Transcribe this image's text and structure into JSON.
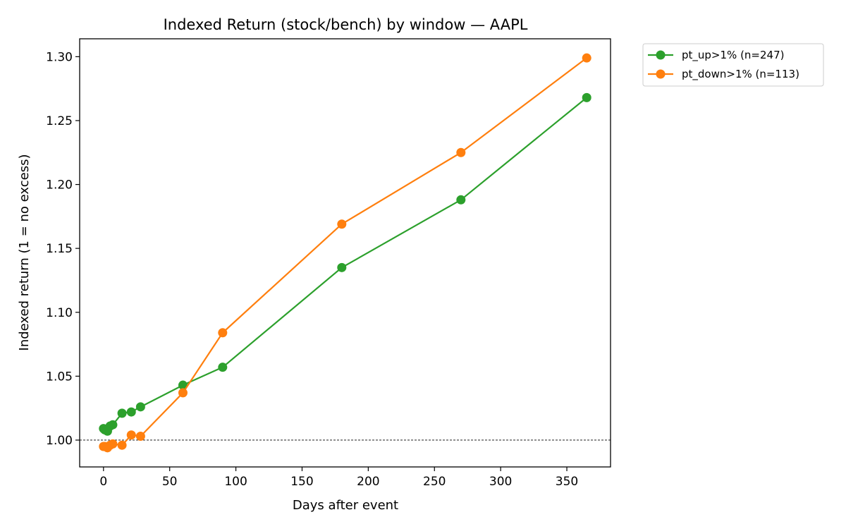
{
  "chart_data": {
    "type": "line",
    "title": "Indexed Return (stock/bench) by window — AAPL",
    "xlabel": "Days after event",
    "ylabel": "Indexed return (1 = no excess)",
    "xlim": [
      -18,
      383
    ],
    "ylim": [
      0.979,
      1.314
    ],
    "x_ticks": [
      0,
      50,
      100,
      150,
      200,
      250,
      300,
      350
    ],
    "x_tick_labels": [
      "0",
      "50",
      "100",
      "150",
      "200",
      "250",
      "300",
      "350"
    ],
    "y_ticks": [
      1.0,
      1.05,
      1.1,
      1.15,
      1.2,
      1.25,
      1.3
    ],
    "y_tick_labels": [
      "1.00",
      "1.05",
      "1.10",
      "1.15",
      "1.20",
      "1.25",
      "1.30"
    ],
    "grid": false,
    "legend_position": "outside-top-right",
    "reference_line": {
      "y": 1.0,
      "style": "dashed",
      "color": "#000000"
    },
    "series": [
      {
        "name": "pt_up>1% (n=247)",
        "color": "#2ca02c",
        "x": [
          0,
          1,
          3,
          5,
          7,
          14,
          21,
          28,
          60,
          90,
          180,
          270,
          365
        ],
        "y": [
          1.009,
          1.008,
          1.007,
          1.011,
          1.012,
          1.021,
          1.022,
          1.026,
          1.043,
          1.057,
          1.135,
          1.188,
          1.268
        ]
      },
      {
        "name": "pt_down>1% (n=113)",
        "color": "#ff7f0e",
        "x": [
          0,
          1,
          3,
          5,
          7,
          14,
          21,
          28,
          60,
          90,
          180,
          270,
          365
        ],
        "y": [
          0.995,
          0.995,
          0.994,
          0.996,
          0.997,
          0.996,
          1.004,
          1.003,
          1.037,
          1.084,
          1.169,
          1.225,
          1.299
        ]
      }
    ]
  }
}
